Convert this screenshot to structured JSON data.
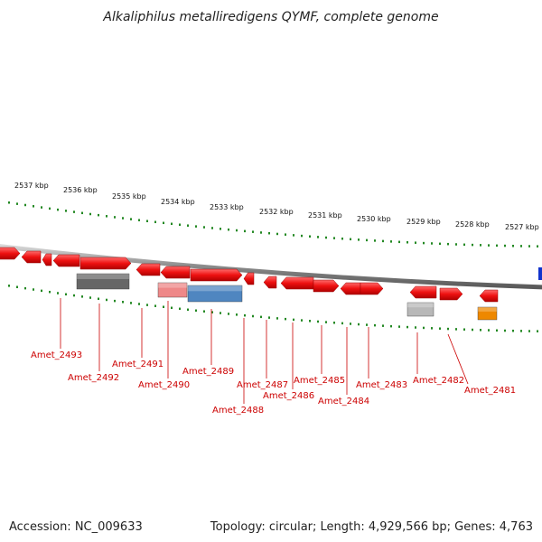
{
  "title": "Alkaliphilus metalliredigens QYMF, complete genome",
  "footer": {
    "accession": "Accession: NC_009633",
    "stats": "Topology: circular; Length: 4,929,566 bp; Genes: 4,763"
  },
  "kbp_labels": [
    "2537 kbp",
    "2536 kbp",
    "2535 kbp",
    "2534 kbp",
    "2533 kbp",
    "2532 kbp",
    "2531 kbp",
    "2530 kbp",
    "2529 kbp",
    "2528 kbp",
    "2527 kbp"
  ],
  "gene_labels": [
    "Amet_2493",
    "Amet_2492",
    "Amet_2491",
    "Amet_2490",
    "Amet_2489",
    "Amet_2488",
    "Amet_2487",
    "Amet_2486",
    "Amet_2485",
    "Amet_2484",
    "Amet_2483",
    "Amet_2482",
    "Amet_2481"
  ],
  "colors": {
    "gene": "#ee1111",
    "backbone": "#888888",
    "tick": "#228822",
    "label": "#cc0000",
    "cog_dark_gray": "#666666",
    "cog_pink": "#ee8888",
    "cog_blue": "#4f86c0",
    "cog_light_gray": "#b8b8b8",
    "cog_orange": "#ee8800",
    "edge_blue": "#1133cc"
  }
}
